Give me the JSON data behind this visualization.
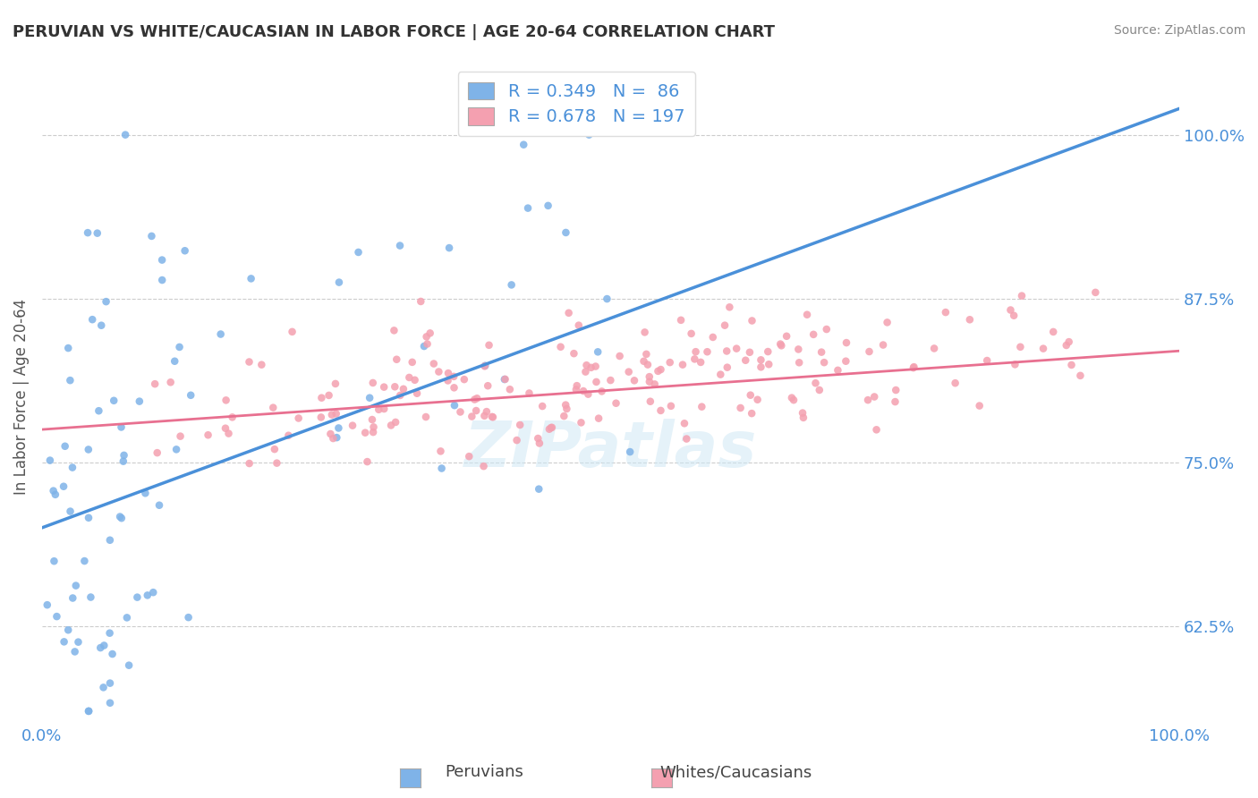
{
  "title": "PERUVIAN VS WHITE/CAUCASIAN IN LABOR FORCE | AGE 20-64 CORRELATION CHART",
  "source": "Source: ZipAtlas.com",
  "ylabel": "In Labor Force | Age 20-64",
  "ytick_values": [
    0.625,
    0.75,
    0.875,
    1.0
  ],
  "xlim": [
    0.0,
    1.0
  ],
  "ylim": [
    0.55,
    1.05
  ],
  "blue_R": 0.349,
  "blue_N": 86,
  "pink_R": 0.678,
  "pink_N": 197,
  "blue_color": "#7fb3e8",
  "pink_color": "#f4a0b0",
  "blue_line_color": "#4a90d9",
  "pink_line_color": "#e87090",
  "watermark": "ZIPatlas",
  "legend_label_blue": "Peruvians",
  "legend_label_pink": "Whites/Caucasians",
  "background_color": "#ffffff",
  "grid_color": "#cccccc"
}
